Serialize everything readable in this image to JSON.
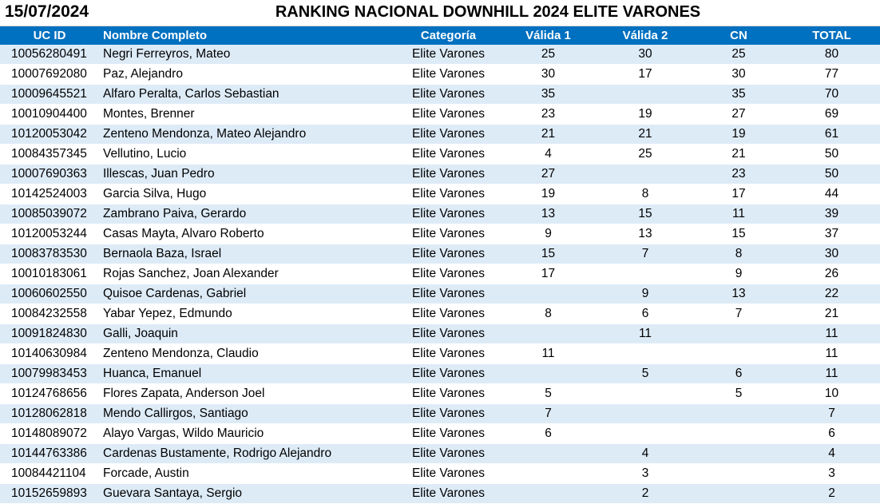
{
  "header": {
    "date": "15/07/2024",
    "title": "RANKING NACIONAL DOWNHILL 2024 ELITE VARONES"
  },
  "columns": {
    "id": "UC ID",
    "name": "Nombre Completo",
    "category": "Categoría",
    "v1": "Válida 1",
    "v2": "Válida 2",
    "cn": "CN",
    "total": "TOTAL"
  },
  "rows": [
    {
      "id": "10056280491",
      "name": "Negri Ferreyros, Mateo",
      "category": "Elite Varones",
      "v1": "25",
      "v2": "30",
      "cn": "25",
      "total": "80"
    },
    {
      "id": "10007692080",
      "name": "Paz, Alejandro",
      "category": "Elite Varones",
      "v1": "30",
      "v2": "17",
      "cn": "30",
      "total": "77"
    },
    {
      "id": "10009645521",
      "name": "Alfaro Peralta, Carlos Sebastian",
      "category": "Elite Varones",
      "v1": "35",
      "v2": "",
      "cn": "35",
      "total": "70"
    },
    {
      "id": "10010904400",
      "name": "Montes, Brenner",
      "category": "Elite Varones",
      "v1": "23",
      "v2": "19",
      "cn": "27",
      "total": "69"
    },
    {
      "id": "10120053042",
      "name": "Zenteno Mendonza, Mateo Alejandro",
      "category": "Elite Varones",
      "v1": "21",
      "v2": "21",
      "cn": "19",
      "total": "61"
    },
    {
      "id": "10084357345",
      "name": "Vellutino, Lucio",
      "category": "Elite Varones",
      "v1": "4",
      "v2": "25",
      "cn": "21",
      "total": "50"
    },
    {
      "id": "10007690363",
      "name": "Illescas, Juan Pedro",
      "category": "Elite Varones",
      "v1": "27",
      "v2": "",
      "cn": "23",
      "total": "50"
    },
    {
      "id": "10142524003",
      "name": "Garcia Silva, Hugo",
      "category": "Elite Varones",
      "v1": "19",
      "v2": "8",
      "cn": "17",
      "total": "44"
    },
    {
      "id": "10085039072",
      "name": "Zambrano Paiva, Gerardo",
      "category": "Elite Varones",
      "v1": "13",
      "v2": "15",
      "cn": "11",
      "total": "39"
    },
    {
      "id": "10120053244",
      "name": "Casas Mayta, Alvaro Roberto",
      "category": "Elite Varones",
      "v1": "9",
      "v2": "13",
      "cn": "15",
      "total": "37"
    },
    {
      "id": "10083783530",
      "name": "Bernaola Baza, Israel",
      "category": "Elite Varones",
      "v1": "15",
      "v2": "7",
      "cn": "8",
      "total": "30"
    },
    {
      "id": "10010183061",
      "name": "Rojas Sanchez, Joan Alexander",
      "category": "Elite Varones",
      "v1": "17",
      "v2": "",
      "cn": "9",
      "total": "26"
    },
    {
      "id": "10060602550",
      "name": "Quisoe Cardenas, Gabriel",
      "category": "Elite Varones",
      "v1": "",
      "v2": "9",
      "cn": "13",
      "total": "22"
    },
    {
      "id": "10084232558",
      "name": "Yabar Yepez, Edmundo",
      "category": "Elite Varones",
      "v1": "8",
      "v2": "6",
      "cn": "7",
      "total": "21"
    },
    {
      "id": "10091824830",
      "name": "Galli, Joaquin",
      "category": "Elite Varones",
      "v1": "",
      "v2": "11",
      "cn": "",
      "total": "11"
    },
    {
      "id": "10140630984",
      "name": "Zenteno Mendonza, Claudio",
      "category": "Elite Varones",
      "v1": "11",
      "v2": "",
      "cn": "",
      "total": "11"
    },
    {
      "id": "10079983453",
      "name": "Huanca, Emanuel",
      "category": "Elite Varones",
      "v1": "",
      "v2": "5",
      "cn": "6",
      "total": "11"
    },
    {
      "id": "10124768656",
      "name": "Flores Zapata, Anderson Joel",
      "category": "Elite Varones",
      "v1": "5",
      "v2": "",
      "cn": "5",
      "total": "10"
    },
    {
      "id": "10128062818",
      "name": "Mendo Callirgos, Santiago",
      "category": "Elite Varones",
      "v1": "7",
      "v2": "",
      "cn": "",
      "total": "7"
    },
    {
      "id": "10148089072",
      "name": "Alayo Vargas, Wildo Mauricio",
      "category": "Elite Varones",
      "v1": "6",
      "v2": "",
      "cn": "",
      "total": "6"
    },
    {
      "id": "10144763386",
      "name": "Cardenas Bustamente, Rodrigo Alejandro",
      "category": "Elite Varones",
      "v1": "",
      "v2": "4",
      "cn": "",
      "total": "4"
    },
    {
      "id": "10084421104",
      "name": "Forcade, Austin",
      "category": "Elite Varones",
      "v1": "",
      "v2": "3",
      "cn": "",
      "total": "3"
    },
    {
      "id": "10152659893",
      "name": "Guevara Santaya, Sergio",
      "category": "Elite Varones",
      "v1": "",
      "v2": "2",
      "cn": "",
      "total": "2"
    }
  ]
}
